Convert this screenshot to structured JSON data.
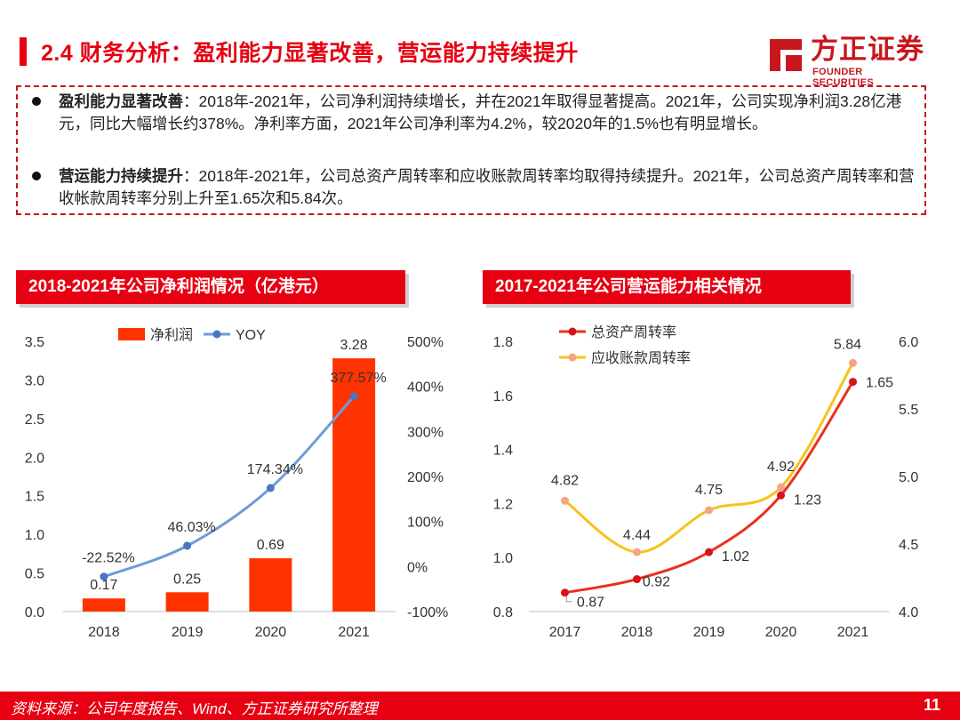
{
  "header": {
    "title": "2.4 财务分析：盈利能力显著改善，营运能力持续提升",
    "logo_cn": "方正证券",
    "logo_en": "FOUNDER SECURITIES",
    "accent": "#e60012"
  },
  "summary": {
    "items": [
      {
        "bold": "盈利能力显著改善",
        "text": "：2018年-2021年，公司净利润持续增长，并在2021年取得显著提高。2021年，公司实现净利润3.28亿港元，同比大幅增长约378%。净利率方面，2021年公司净利率为4.2%，较2020年的1.5%也有明显增长。"
      },
      {
        "bold": "营运能力持续提升",
        "text": "：2018年-2021年，公司总资产周转率和应收账款周转率均取得持续提升。2021年，公司总资产周转率和营收帐款周转率分别上升至1.65次和5.84次。"
      }
    ]
  },
  "chart_data": [
    {
      "type": "bar",
      "title": "2018-2021年公司净利润情况（亿港元）",
      "categories": [
        "2018",
        "2019",
        "2020",
        "2021"
      ],
      "series": [
        {
          "name": "净利润",
          "type": "bar",
          "axis": "left",
          "color": "#ff3300",
          "values": [
            0.17,
            0.25,
            0.69,
            3.28
          ],
          "labels": [
            "0.17",
            "0.25",
            "0.69",
            "3.28"
          ]
        },
        {
          "name": "YOY",
          "type": "line",
          "axis": "right",
          "color": "#6f9bd8",
          "values": [
            -22.52,
            46.03,
            174.34,
            377.57
          ],
          "labels": [
            "-22.52%",
            "46.03%",
            "174.34%",
            "377.57%"
          ]
        }
      ],
      "left_axis": {
        "min": 0,
        "max": 3.5,
        "ticks": [
          "0.0",
          "0.5",
          "1.0",
          "1.5",
          "2.0",
          "2.5",
          "3.0",
          "3.5"
        ]
      },
      "right_axis": {
        "min": -100,
        "max": 500,
        "ticks": [
          "-100%",
          "0%",
          "100%",
          "200%",
          "300%",
          "400%",
          "500%"
        ]
      },
      "legend": "top-center"
    },
    {
      "type": "line",
      "title": "2017-2021年公司营运能力相关情况",
      "categories": [
        "2017",
        "2018",
        "2019",
        "2020",
        "2021"
      ],
      "series": [
        {
          "name": "总资产周转率",
          "axis": "left",
          "color": "#e8311d",
          "marker_color": "#d8121f",
          "values": [
            0.87,
            0.92,
            1.02,
            1.23,
            1.65
          ],
          "labels": [
            "0.87",
            "0.92",
            "1.02",
            "1.23",
            "1.65"
          ]
        },
        {
          "name": "应收账款周转率",
          "axis": "right",
          "color": "#f7c21a",
          "marker_color": "#f3a582",
          "values": [
            4.82,
            4.44,
            4.75,
            4.92,
            5.84
          ],
          "labels": [
            "4.82",
            "4.44",
            "4.75",
            "4.92",
            "5.84"
          ]
        }
      ],
      "left_axis": {
        "min": 0.8,
        "max": 1.8,
        "ticks": [
          "0.8",
          "1.0",
          "1.2",
          "1.4",
          "1.6",
          "1.8"
        ]
      },
      "right_axis": {
        "min": 4.0,
        "max": 6.0,
        "ticks": [
          "4.0",
          "4.5",
          "5.0",
          "5.5",
          "6.0"
        ]
      },
      "legend": "top-left"
    }
  ],
  "footer": {
    "source": "资料来源：公司年度报告、Wind、方正证券研究所整理",
    "page": "11"
  }
}
